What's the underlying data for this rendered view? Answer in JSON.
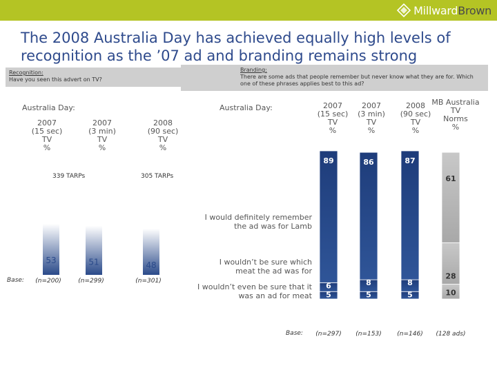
{
  "header": {
    "brand_primary": "Millward",
    "brand_secondary": "Brown",
    "bar_color": "#b4c424"
  },
  "title": "The 2008 Australia Day has achieved equally high levels of recognition as the ’07 ad and branding remains strong",
  "recognition": {
    "question_label": "Recognition:",
    "question_text": "Have you seen this advert on TV?",
    "section_label": "Australia Day:",
    "tarps_2007": "339 TARPs",
    "tarps_2008": "305 TARPs",
    "base_label": "Base:"
  },
  "branding": {
    "question_label": "Branding:",
    "question_text": "There are some ads that people remember but never know what they are for. Which one of these phrases applies best to this ad?",
    "section_label": "Australia Day:",
    "statements": [
      "I would definitely remember\nthe ad was for Lamb",
      "I wouldn’t be sure which\nmeat the ad was for",
      "I wouldn’t even be sure that it\nwas an ad for meat"
    ],
    "base_label": "Base:"
  },
  "chart_data": [
    {
      "type": "bar",
      "title": "Recognition: Have you seen this advert on TV?",
      "categories": [
        "2007\n(15 sec)\nTV\n%",
        "2007\n(3 min)\nTV\n%",
        "2008\n(90 sec)\nTV\n%"
      ],
      "values": [
        53,
        51,
        48
      ],
      "value_labels": [
        "53",
        "51",
        "48"
      ],
      "bases": [
        "(n=200)",
        "(n=299)",
        "(n=301)"
      ],
      "ylim": [
        0,
        100
      ],
      "colors": {
        "bar_top": "#ffffff",
        "bar_bottom": "#2a4a8a",
        "label": "#2a4a8a"
      }
    },
    {
      "type": "bar",
      "stacked": true,
      "title": "Branding: Which one of these phrases applies best to this ad?",
      "categories": [
        "2007\n(15 sec)\nTV\n%",
        "2007\n(3 min)\nTV\n%",
        "2008\n(90 sec)\nTV\n%",
        "MB Australia\nTV\nNorms\n%"
      ],
      "series": [
        {
          "name": "I would definitely remember the ad was for Lamb",
          "values": [
            89,
            86,
            87,
            61
          ],
          "labels": [
            "89",
            "86",
            "87",
            "61"
          ]
        },
        {
          "name": "I wouldn’t be sure which meat the ad was for",
          "values": [
            6,
            8,
            8,
            28
          ],
          "labels": [
            "6",
            "8",
            "8",
            "28"
          ]
        },
        {
          "name": "I wouldn’t even be sure that it was an ad for meat",
          "values": [
            5,
            5,
            5,
            10
          ],
          "labels": [
            "5",
            "5",
            "5",
            "10"
          ]
        }
      ],
      "bases": [
        "(n=297)",
        "(n=153)",
        "(n=146)",
        "(128 ads)"
      ],
      "ylim": [
        0,
        100
      ],
      "colors": {
        "campaign_bar": "#2a4a8a",
        "norm_bar": "#bdbdbd",
        "label": "#2a4a8a"
      }
    }
  ]
}
